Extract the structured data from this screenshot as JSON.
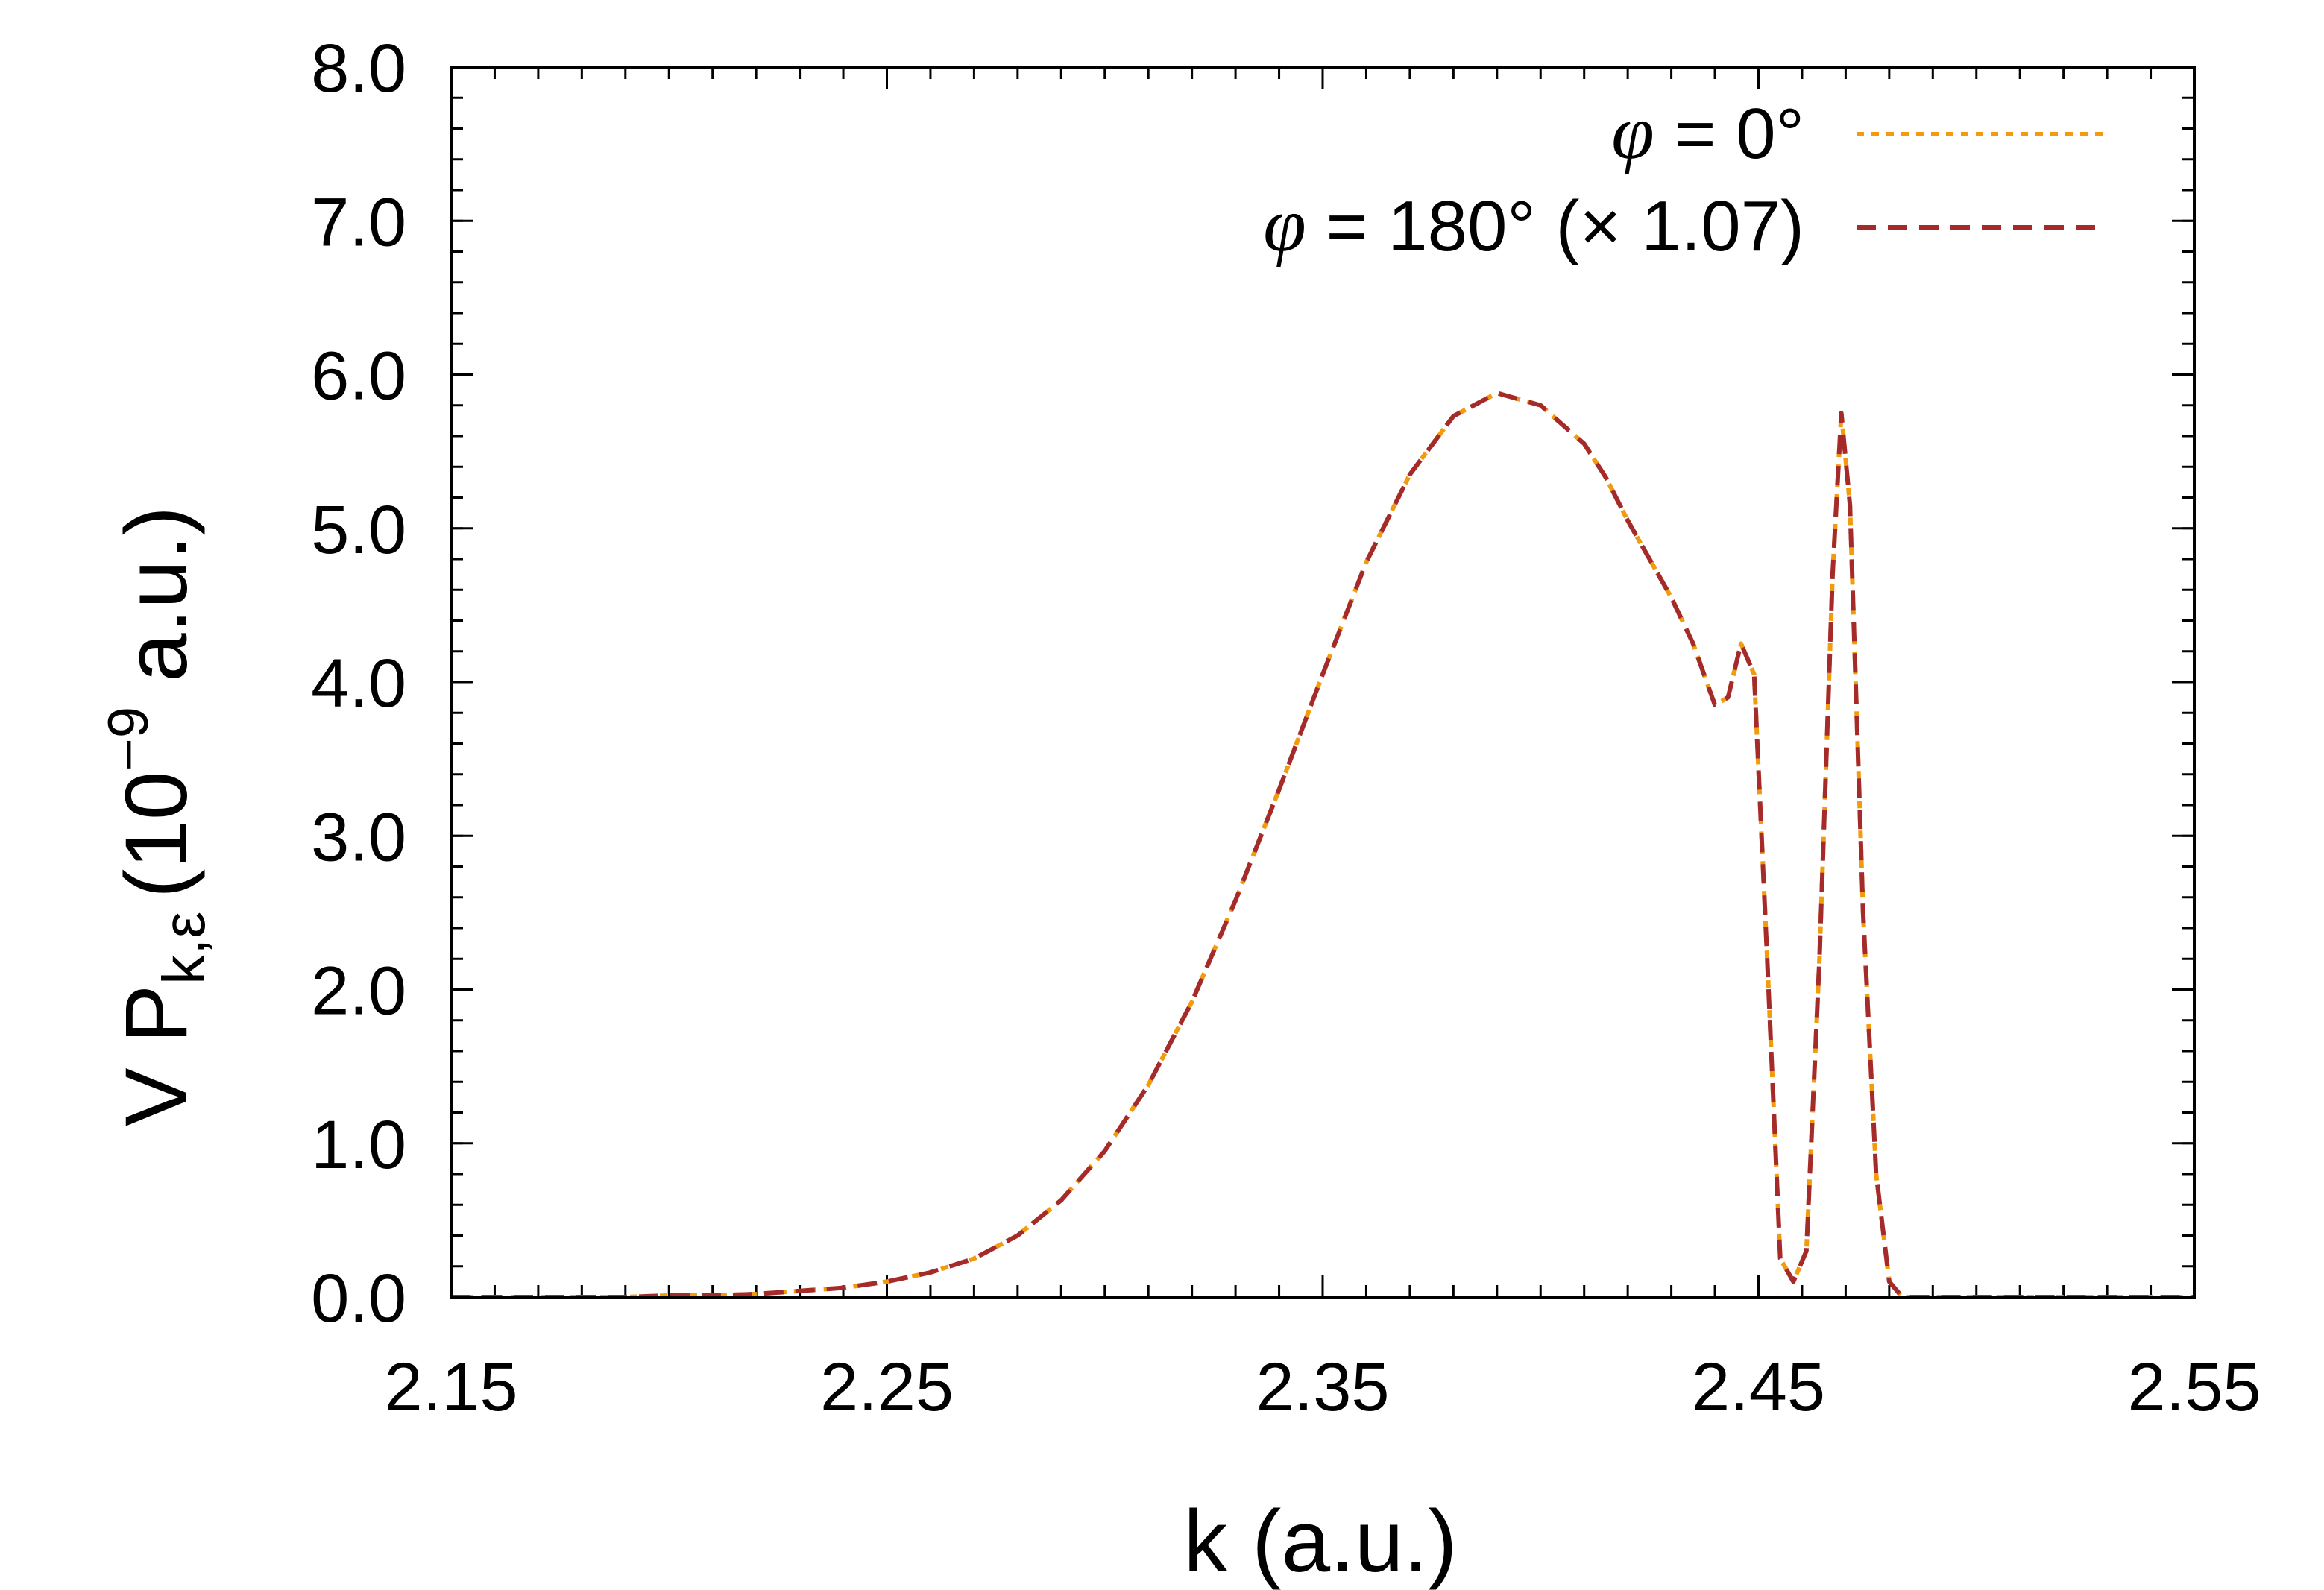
{
  "chart_data": {
    "type": "line",
    "title": "",
    "xlabel": "k (a.u.)",
    "ylabel": {
      "main": "V P",
      "subscript": "k,ε",
      "prefix_unit": "(10",
      "exponent": "−9",
      "suffix_unit": " a.u.)"
    },
    "xlim": [
      2.15,
      2.55
    ],
    "ylim": [
      0.0,
      8.0
    ],
    "x_ticks": [
      2.15,
      2.25,
      2.35,
      2.45,
      2.55
    ],
    "x_tick_labels": [
      "2.15",
      "2.25",
      "2.35",
      "2.45",
      "2.55"
    ],
    "y_ticks": [
      0,
      1,
      2,
      3,
      4,
      5,
      6,
      7,
      8
    ],
    "y_tick_labels": [
      "0.0",
      "1.0",
      "2.0",
      "3.0",
      "4.0",
      "5.0",
      "6.0",
      "7.0",
      "8.0"
    ],
    "x_minor_step": 0.01,
    "y_minor_step": 0.2,
    "grid": false,
    "legend_position": "top-right",
    "series": [
      {
        "name_symbol": "φ",
        "name_rest": " = 0°",
        "color": "#f29b0c",
        "dash": "dotted",
        "x": [
          2.15,
          2.16,
          2.17,
          2.18,
          2.19,
          2.2,
          2.21,
          2.22,
          2.23,
          2.24,
          2.25,
          2.26,
          2.27,
          2.28,
          2.29,
          2.3,
          2.31,
          2.32,
          2.33,
          2.34,
          2.35,
          2.36,
          2.37,
          2.38,
          2.39,
          2.4,
          2.41,
          2.415,
          2.42,
          2.425,
          2.43,
          2.435,
          2.44,
          2.443,
          2.446,
          2.449,
          2.452,
          2.455,
          2.458,
          2.461,
          2.464,
          2.467,
          2.469,
          2.471,
          2.474,
          2.477,
          2.48,
          2.483,
          2.486,
          2.49,
          2.5,
          2.51,
          2.52,
          2.53,
          2.54,
          2.55
        ],
        "y": [
          0.0,
          0.0,
          0.0,
          0.0,
          0.0,
          0.01,
          0.01,
          0.02,
          0.04,
          0.06,
          0.1,
          0.16,
          0.25,
          0.4,
          0.63,
          0.95,
          1.38,
          1.92,
          2.58,
          3.3,
          4.05,
          4.78,
          5.35,
          5.73,
          5.88,
          5.8,
          5.55,
          5.33,
          5.05,
          4.8,
          4.55,
          4.25,
          3.85,
          3.9,
          4.25,
          4.05,
          2.2,
          0.25,
          0.1,
          0.3,
          2.2,
          4.7,
          5.75,
          5.15,
          2.5,
          0.8,
          0.1,
          0.0,
          0.0,
          0.0,
          0.0,
          0.0,
          0.0,
          0.0,
          0.0,
          0.0
        ]
      },
      {
        "name_symbol": "φ",
        "name_rest": " = 180° (× 1.07)",
        "color": "#a52a2a",
        "dash": "dashed",
        "x": [
          2.15,
          2.16,
          2.17,
          2.18,
          2.19,
          2.2,
          2.21,
          2.22,
          2.23,
          2.24,
          2.25,
          2.26,
          2.27,
          2.28,
          2.29,
          2.3,
          2.31,
          2.32,
          2.33,
          2.34,
          2.35,
          2.36,
          2.37,
          2.38,
          2.39,
          2.4,
          2.41,
          2.415,
          2.42,
          2.425,
          2.43,
          2.435,
          2.44,
          2.443,
          2.446,
          2.449,
          2.452,
          2.455,
          2.458,
          2.461,
          2.464,
          2.467,
          2.469,
          2.471,
          2.474,
          2.477,
          2.48,
          2.483,
          2.486,
          2.49,
          2.5,
          2.51,
          2.52,
          2.53,
          2.54,
          2.55
        ],
        "y": [
          0.0,
          0.0,
          0.0,
          0.0,
          0.0,
          0.01,
          0.01,
          0.02,
          0.04,
          0.06,
          0.1,
          0.16,
          0.25,
          0.4,
          0.63,
          0.95,
          1.38,
          1.92,
          2.58,
          3.3,
          4.05,
          4.78,
          5.35,
          5.73,
          5.88,
          5.8,
          5.55,
          5.33,
          5.05,
          4.8,
          4.55,
          4.25,
          3.85,
          3.9,
          4.25,
          4.05,
          2.2,
          0.25,
          0.1,
          0.3,
          2.2,
          4.7,
          5.75,
          5.15,
          2.5,
          0.8,
          0.1,
          0.0,
          0.0,
          0.0,
          0.0,
          0.0,
          0.0,
          0.0,
          0.0,
          0.0
        ]
      }
    ]
  }
}
